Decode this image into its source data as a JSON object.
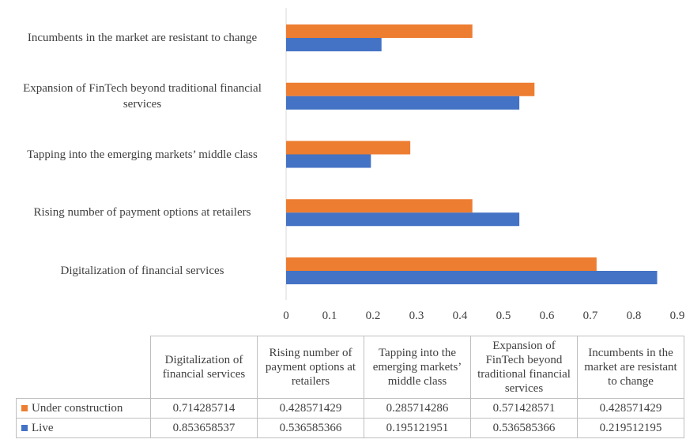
{
  "chart_data": {
    "type": "bar",
    "orientation": "horizontal",
    "categories": [
      "Digitalization of financial services",
      "Rising number of payment options at retailers",
      "Tapping into the emerging markets’ middle class",
      "Expansion of FinTech beyond traditional financial services",
      "Incumbents in the market are resistant to change"
    ],
    "series": [
      {
        "name": "Under construction",
        "color": "#ED7D31",
        "values": [
          0.714285714,
          0.428571429,
          0.285714286,
          0.571428571,
          0.428571429
        ]
      },
      {
        "name": "Live",
        "color": "#4472C4",
        "values": [
          0.853658537,
          0.536585366,
          0.195121951,
          0.536585366,
          0.219512195
        ]
      }
    ],
    "xlim": [
      0,
      0.9
    ],
    "xticks": [
      0,
      0.1,
      0.2,
      0.3,
      0.4,
      0.5,
      0.6,
      0.7,
      0.8,
      0.9
    ],
    "grid": false,
    "data_table": true
  }
}
